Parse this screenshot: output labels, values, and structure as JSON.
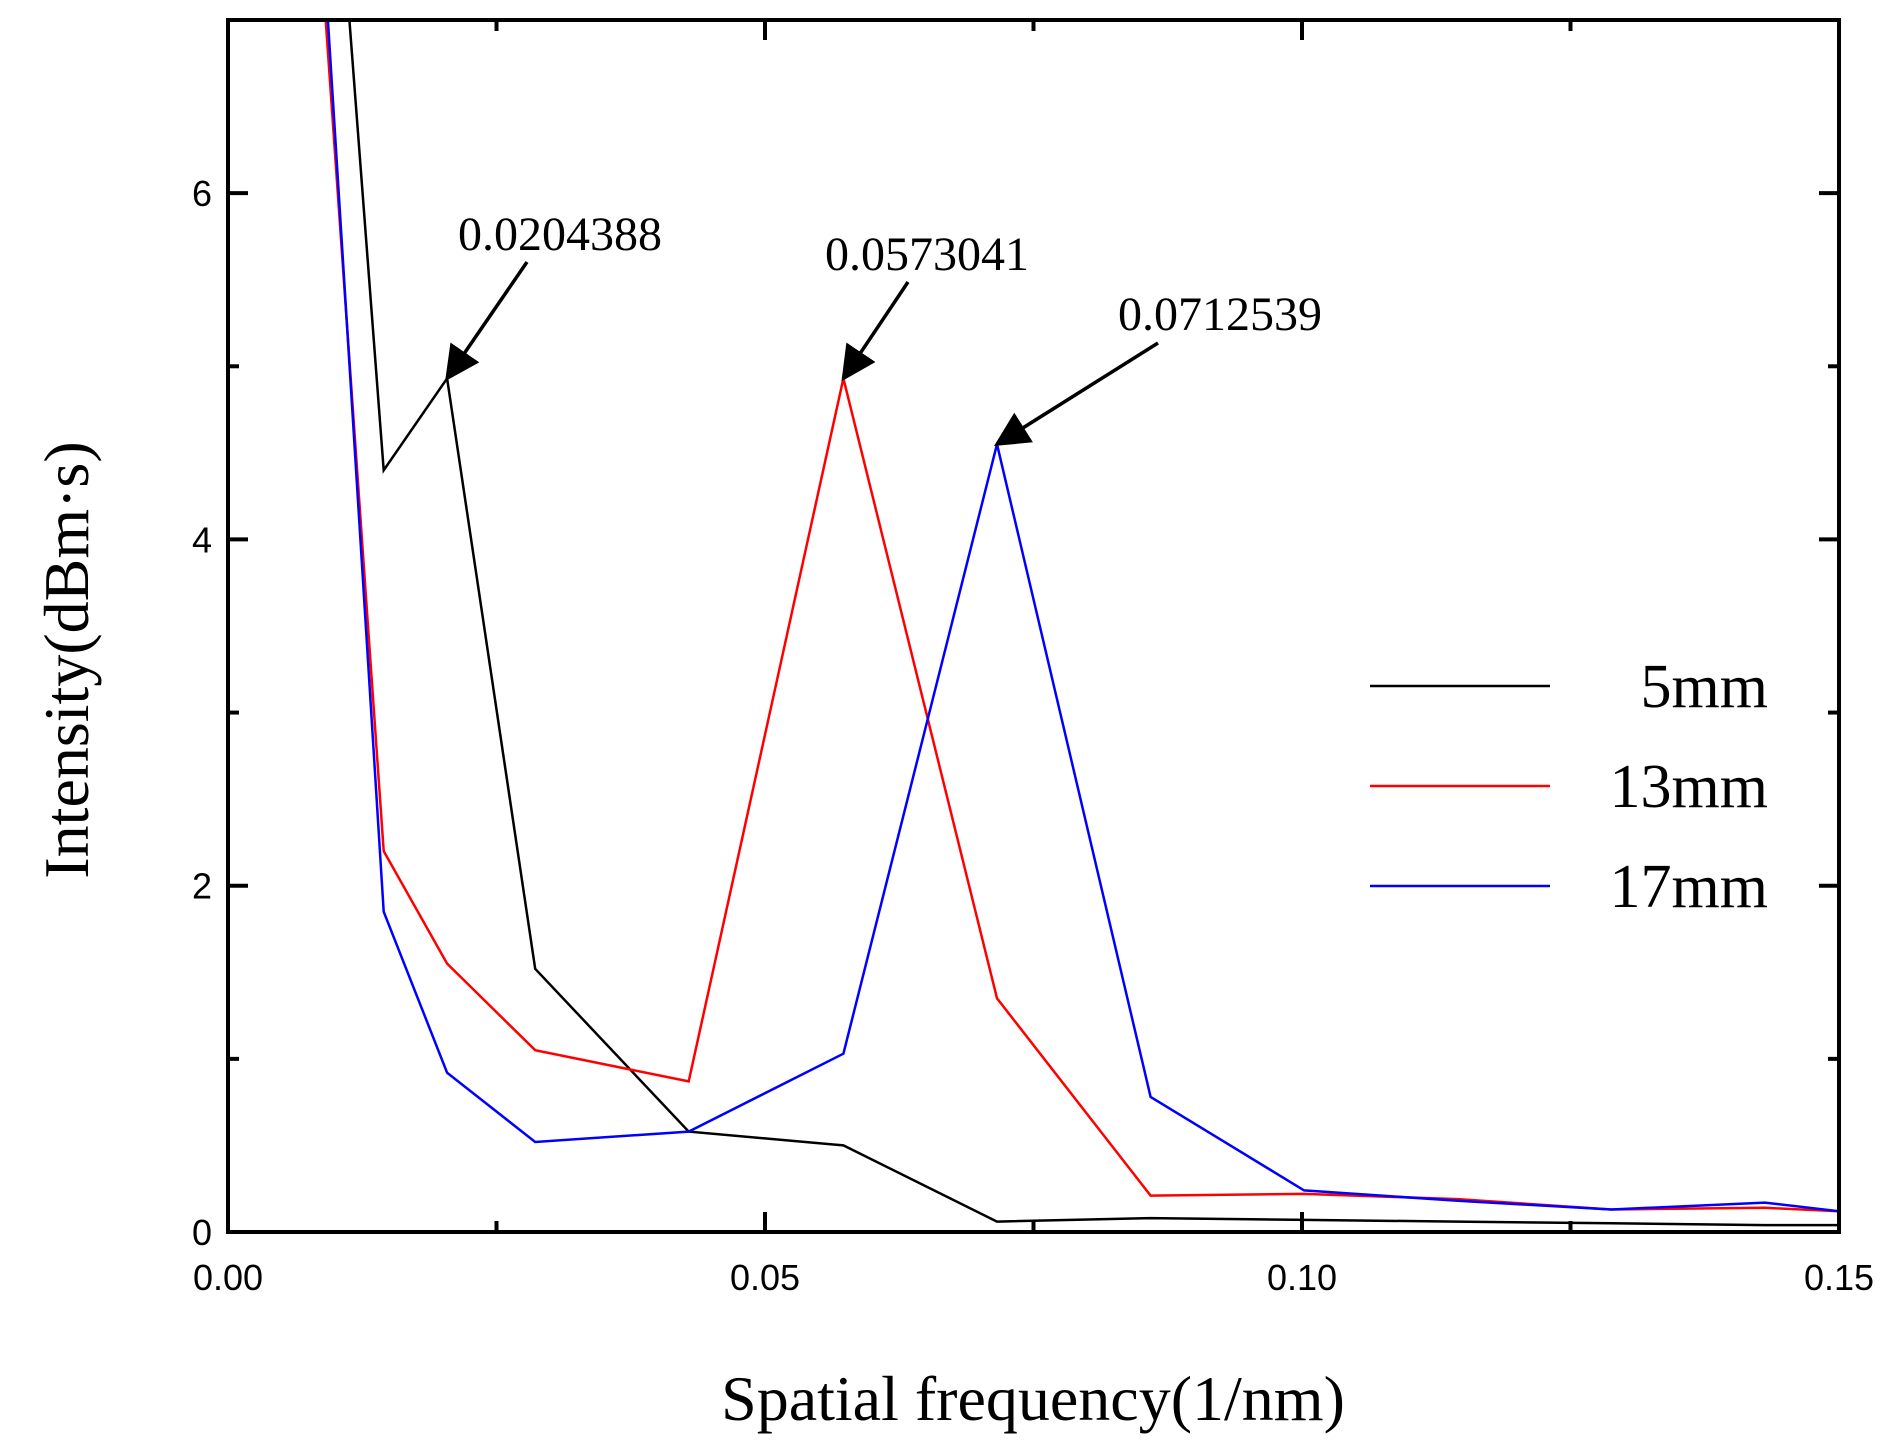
{
  "chart_data": {
    "type": "line",
    "xlabel": "Spatial frequency(1/nm)",
    "ylabel": "Intensity(dBm·s)",
    "xlim": [
      0,
      0.15
    ],
    "ylim": [
      0,
      7
    ],
    "x_ticks": [
      0.0,
      0.05,
      0.1,
      0.15
    ],
    "x_tick_labels": [
      "0.00",
      "0.05",
      "0.10",
      "0.15"
    ],
    "y_ticks": [
      0,
      2,
      4,
      6
    ],
    "y_tick_labels": [
      "0",
      "2",
      "4",
      "6"
    ],
    "grid": false,
    "legend_position": "right",
    "series": [
      {
        "name": "5mm",
        "color": "#000000",
        "x": [
          0.0113,
          0.0145,
          0.0204,
          0.0286,
          0.0429,
          0.0573,
          0.0716,
          0.0859,
          0.1002,
          0.1145,
          0.1288,
          0.1431,
          0.15
        ],
        "y": [
          7.0,
          4.4,
          4.93,
          1.52,
          0.58,
          0.5,
          0.06,
          0.08,
          0.07,
          0.06,
          0.05,
          0.04,
          0.04
        ]
      },
      {
        "name": "13mm",
        "color": "#ff0000",
        "x": [
          0.0091,
          0.0145,
          0.0204,
          0.0286,
          0.0429,
          0.0573,
          0.0716,
          0.0859,
          0.1002,
          0.1145,
          0.1288,
          0.1431,
          0.15
        ],
        "y": [
          7.0,
          2.2,
          1.55,
          1.05,
          0.87,
          4.93,
          1.35,
          0.21,
          0.22,
          0.19,
          0.13,
          0.14,
          0.12
        ]
      },
      {
        "name": "17mm",
        "color": "#0000ff",
        "x": [
          0.0093,
          0.0145,
          0.0204,
          0.0286,
          0.0429,
          0.0573,
          0.0716,
          0.0859,
          0.1002,
          0.1145,
          0.1288,
          0.1431,
          0.15
        ],
        "y": [
          7.0,
          1.85,
          0.92,
          0.52,
          0.58,
          1.03,
          4.55,
          0.78,
          0.24,
          0.18,
          0.13,
          0.17,
          0.12
        ]
      }
    ],
    "annotations": [
      {
        "text": "0.0204388",
        "x": 0.0204,
        "y": 4.93
      },
      {
        "text": "0.0573041",
        "x": 0.0573,
        "y": 4.93
      },
      {
        "text": "0.0712539",
        "x": 0.0716,
        "y": 4.55
      }
    ]
  }
}
